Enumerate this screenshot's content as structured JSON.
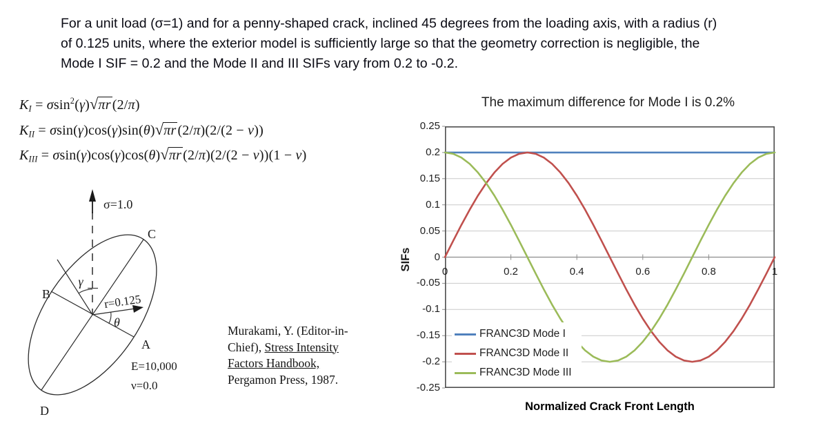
{
  "intro": {
    "lines": [
      "For a unit load (σ=1) and for a penny-shaped crack, inclined 45 degrees from the loading axis, with a radius (r)",
      "of 0.125 units, where the exterior model is sufficiently large so that the geometry correction is negligible, the",
      "Mode I SIF = 0.2 and the Mode II and III SIFs vary from 0.2 to -0.2."
    ]
  },
  "formulas": [
    [
      {
        "t": "i",
        "v": "K"
      },
      {
        "t": "sub",
        "v": "I"
      },
      {
        "t": "r",
        "v": " = "
      },
      {
        "t": "i",
        "v": "σ"
      },
      {
        "t": "r",
        "v": "sin"
      },
      {
        "t": "sup",
        "v": "2"
      },
      {
        "t": "r",
        "v": "("
      },
      {
        "t": "i",
        "v": "γ"
      },
      {
        "t": "r",
        "v": ")"
      },
      {
        "t": "sqrt",
        "v": "πr"
      },
      {
        "t": "r",
        "v": "(2/"
      },
      {
        "t": "i",
        "v": "π"
      },
      {
        "t": "r",
        "v": ")"
      }
    ],
    [
      {
        "t": "i",
        "v": "K"
      },
      {
        "t": "sub",
        "v": "II"
      },
      {
        "t": "r",
        "v": " = "
      },
      {
        "t": "i",
        "v": "σ"
      },
      {
        "t": "r",
        "v": "sin("
      },
      {
        "t": "i",
        "v": "γ"
      },
      {
        "t": "r",
        "v": ")cos("
      },
      {
        "t": "i",
        "v": "γ"
      },
      {
        "t": "r",
        "v": ")sin("
      },
      {
        "t": "i",
        "v": "θ"
      },
      {
        "t": "r",
        "v": ")"
      },
      {
        "t": "sqrt",
        "v": "πr"
      },
      {
        "t": "r",
        "v": "(2/"
      },
      {
        "t": "i",
        "v": "π"
      },
      {
        "t": "r",
        "v": ")(2/(2 − "
      },
      {
        "t": "i",
        "v": "ν"
      },
      {
        "t": "r",
        "v": "))"
      }
    ],
    [
      {
        "t": "i",
        "v": "K"
      },
      {
        "t": "sub",
        "v": "III"
      },
      {
        "t": "r",
        "v": " = "
      },
      {
        "t": "i",
        "v": "σ"
      },
      {
        "t": "r",
        "v": "sin("
      },
      {
        "t": "i",
        "v": "γ"
      },
      {
        "t": "r",
        "v": ")cos("
      },
      {
        "t": "i",
        "v": "γ"
      },
      {
        "t": "r",
        "v": ")cos("
      },
      {
        "t": "i",
        "v": "θ"
      },
      {
        "t": "r",
        "v": ")"
      },
      {
        "t": "sqrt",
        "v": "πr"
      },
      {
        "t": "r",
        "v": "(2/"
      },
      {
        "t": "i",
        "v": "π"
      },
      {
        "t": "r",
        "v": ")(2/(2 − "
      },
      {
        "t": "i",
        "v": "ν"
      },
      {
        "t": "r",
        "v": "))(1 − "
      },
      {
        "t": "i",
        "v": "ν"
      },
      {
        "t": "r",
        "v": ")"
      }
    ]
  ],
  "diagram": {
    "sigma_label": "σ=1.0",
    "gamma_label": "γ",
    "theta_label": "θ",
    "radius_label": "r=0.125",
    "point_a": "A",
    "point_b": "B",
    "point_c": "C",
    "point_d": "D",
    "modulus_label": "E=10,000",
    "poisson_label": "ν=0.0"
  },
  "citation": {
    "lines": [
      [
        {
          "text": "Murakami, Y. (Editor-in-"
        }
      ],
      [
        {
          "text": "Chief), "
        },
        {
          "text": "Stress Intensity",
          "underline": true
        }
      ],
      [
        {
          "text": "Factors Handbook,",
          "underline": true
        }
      ],
      [
        {
          "text": "Pergamon Press, 1987."
        }
      ]
    ]
  },
  "chart_data": {
    "type": "line",
    "title": "The maximum difference for Mode I is 0.2%",
    "xlabel": "Normalized Crack Front Length",
    "ylabel": "SIFs",
    "xlim": [
      0,
      1
    ],
    "ylim": [
      -0.25,
      0.25
    ],
    "grid": true,
    "legend_position": "inside-bottom-left",
    "x_ticks": [
      0,
      0.2,
      0.4,
      0.6,
      0.8,
      1
    ],
    "x_tick_labels": [
      "0",
      "0.2",
      "0.4",
      "0.6",
      "0.8",
      "1"
    ],
    "y_ticks": [
      0.25,
      0.2,
      0.15,
      0.1,
      0.05,
      0,
      -0.05,
      -0.1,
      -0.15,
      -0.2,
      -0.25
    ],
    "y_tick_labels": [
      "0.25",
      "0.2",
      "0.15",
      "0.1",
      "0.05",
      "0",
      "-0.05",
      "-0.1",
      "-0.15",
      "-0.2",
      "-0.25"
    ],
    "x": [
      0,
      0.025,
      0.05,
      0.075,
      0.1,
      0.125,
      0.15,
      0.175,
      0.2,
      0.225,
      0.25,
      0.275,
      0.3,
      0.325,
      0.35,
      0.375,
      0.4,
      0.425,
      0.45,
      0.475,
      0.5,
      0.525,
      0.55,
      0.575,
      0.6,
      0.625,
      0.65,
      0.675,
      0.7,
      0.725,
      0.75,
      0.775,
      0.8,
      0.825,
      0.85,
      0.875,
      0.9,
      0.925,
      0.95,
      0.975,
      1
    ],
    "series": [
      {
        "name": "FRANC3D Mode I",
        "color": "#4F81BD",
        "values": [
          0.2,
          0.2,
          0.2,
          0.2,
          0.2,
          0.2,
          0.2,
          0.2,
          0.2,
          0.2,
          0.2,
          0.2,
          0.2,
          0.2,
          0.2,
          0.2,
          0.2,
          0.2,
          0.2,
          0.2,
          0.2,
          0.2,
          0.2,
          0.2,
          0.2,
          0.2,
          0.2,
          0.2,
          0.2,
          0.2,
          0.2,
          0.2,
          0.2,
          0.2,
          0.2,
          0.2,
          0.2,
          0.2,
          0.2,
          0.2,
          0.2
        ]
      },
      {
        "name": "FRANC3D Mode II",
        "color": "#C0504D",
        "values": [
          0,
          0.0313,
          0.0618,
          0.0908,
          0.1176,
          0.1414,
          0.1618,
          0.1782,
          0.1902,
          0.1975,
          0.2,
          0.1975,
          0.1902,
          0.1782,
          0.1618,
          0.1414,
          0.1176,
          0.0908,
          0.0618,
          0.0313,
          0,
          -0.0313,
          -0.0618,
          -0.0908,
          -0.1176,
          -0.1414,
          -0.1618,
          -0.1782,
          -0.1902,
          -0.1975,
          -0.2,
          -0.1975,
          -0.1902,
          -0.1782,
          -0.1618,
          -0.1414,
          -0.1176,
          -0.0908,
          -0.0618,
          -0.0313,
          0
        ]
      },
      {
        "name": "FRANC3D Mode III",
        "color": "#9BBB59",
        "values": [
          0.2,
          0.1975,
          0.1902,
          0.1782,
          0.1618,
          0.1414,
          0.1176,
          0.0908,
          0.0618,
          0.0313,
          0,
          -0.0313,
          -0.0618,
          -0.0908,
          -0.1176,
          -0.1414,
          -0.1618,
          -0.1782,
          -0.1902,
          -0.1975,
          -0.2,
          -0.1975,
          -0.1902,
          -0.1782,
          -0.1618,
          -0.1414,
          -0.1176,
          -0.0908,
          -0.0618,
          -0.0313,
          0,
          0.0313,
          0.0618,
          0.0908,
          0.1176,
          0.1414,
          0.1618,
          0.1782,
          0.1902,
          0.1975,
          0.2
        ]
      }
    ],
    "colors": {
      "gridline": "#C9C9C9",
      "axis": "#8C8C8C",
      "plot_border": "#4D4D4D",
      "text": "#1f1f1f"
    }
  }
}
